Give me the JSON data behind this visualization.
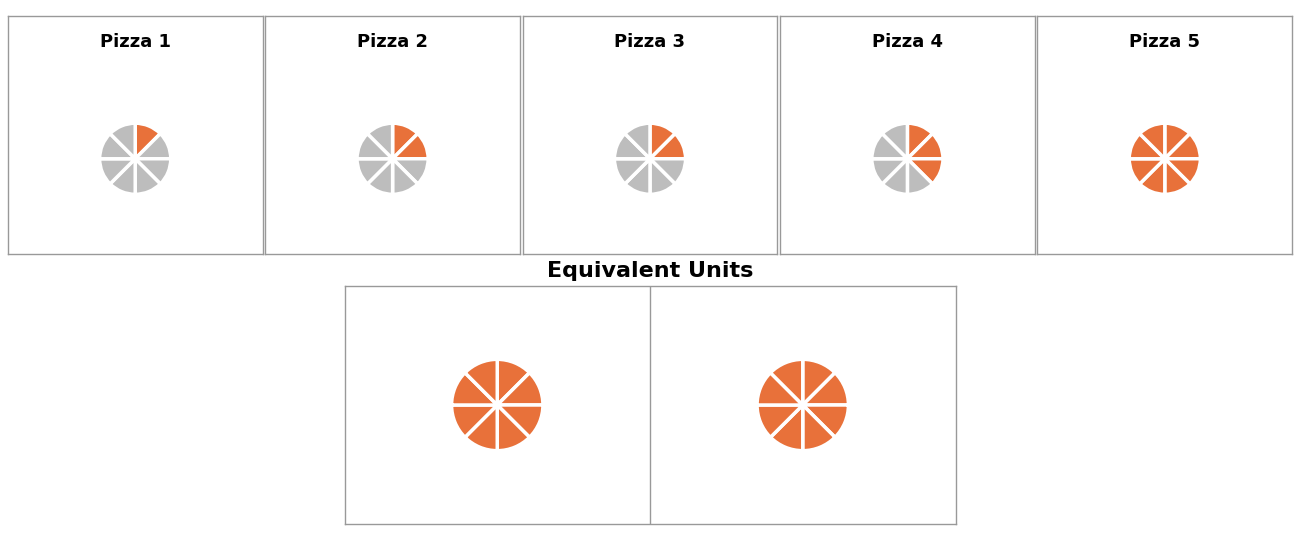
{
  "pizzas": [
    {
      "label": "Pizza 1",
      "orange": 1,
      "gray": 7
    },
    {
      "label": "Pizza 2",
      "orange": 2,
      "gray": 6
    },
    {
      "label": "Pizza 3",
      "orange": 2,
      "gray": 6
    },
    {
      "label": "Pizza 4",
      "orange": 3,
      "gray": 5
    },
    {
      "label": "Pizza 5",
      "orange": 8,
      "gray": 0
    }
  ],
  "equiv_units": [
    {
      "orange": 8,
      "gray": 0
    },
    {
      "orange": 8,
      "gray": 0
    }
  ],
  "orange_color": "#E8713A",
  "gray_color": "#BDBDBD",
  "edge_color": "#FFFFFF",
  "total_slices": 8,
  "title_fontsize": 13,
  "equiv_title": "Equivalent Units",
  "equiv_title_fontsize": 16,
  "box_facecolor": "#FFFFFF",
  "box_edgecolor": "#999999",
  "fig_facecolor": "#FFFFFF"
}
